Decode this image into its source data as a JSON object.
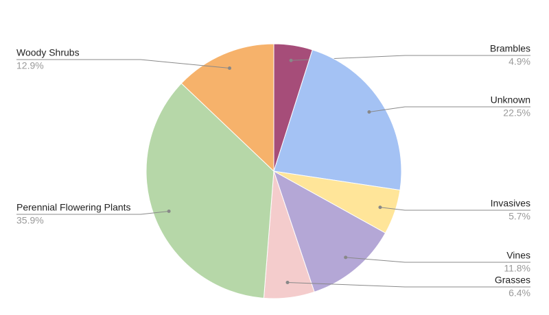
{
  "chart_data": {
    "type": "pie",
    "categories": [
      "Brambles",
      "Unknown",
      "Invasives",
      "Vines",
      "Grasses",
      "Perennial Flowering Plants",
      "Woody Shrubs"
    ],
    "values": [
      4.9,
      22.5,
      5.7,
      11.8,
      6.4,
      35.9,
      12.9
    ],
    "value_labels": [
      "4.9%",
      "22.5%",
      "5.7%",
      "11.8%",
      "6.4%",
      "35.9%",
      "12.9%"
    ],
    "colors": [
      "#a64d79",
      "#a4c2f4",
      "#ffe599",
      "#b4a7d6",
      "#f4cccc",
      "#b6d7a8",
      "#f6b26b"
    ]
  }
}
